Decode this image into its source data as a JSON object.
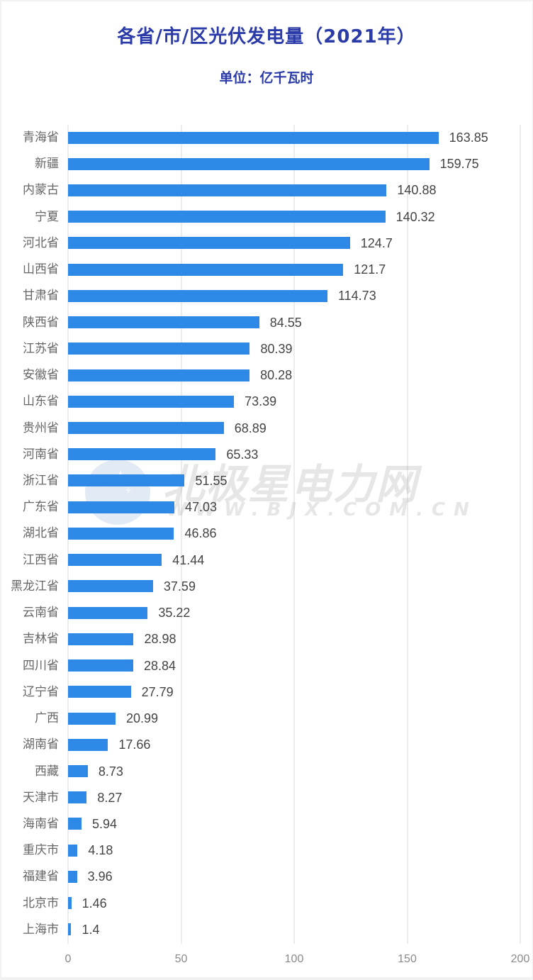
{
  "title": "各省/市/区光伏发电量（2021年）",
  "subtitle": "单位：亿千瓦时",
  "watermark": {
    "name": "北极星电力网",
    "url": "WWW.BJX.COM.CN"
  },
  "colors": {
    "bar": "#2e88e6",
    "title": "#2a3aa8",
    "grid": "#ececec"
  },
  "axis": {
    "ticks": [
      "0",
      "50",
      "100",
      "150",
      "200"
    ]
  },
  "chart_data": {
    "type": "bar",
    "orientation": "horizontal",
    "title": "各省/市/区光伏发电量（2021年）",
    "subtitle": "单位：亿千瓦时",
    "xlabel": "",
    "ylabel": "",
    "xlim": [
      0,
      200
    ],
    "xticks": [
      0,
      50,
      100,
      150,
      200
    ],
    "grid": true,
    "legend": null,
    "categories": [
      "青海省",
      "新疆",
      "内蒙古",
      "宁夏",
      "河北省",
      "山西省",
      "甘肃省",
      "陕西省",
      "江苏省",
      "安徽省",
      "山东省",
      "贵州省",
      "河南省",
      "浙江省",
      "广东省",
      "湖北省",
      "江西省",
      "黑龙江省",
      "云南省",
      "吉林省",
      "四川省",
      "辽宁省",
      "广西",
      "湖南省",
      "西藏",
      "天津市",
      "海南省",
      "重庆市",
      "福建省",
      "北京市",
      "上海市"
    ],
    "values": [
      163.85,
      159.75,
      140.88,
      140.32,
      124.7,
      121.7,
      114.73,
      84.55,
      80.39,
      80.28,
      73.39,
      68.89,
      65.33,
      51.55,
      47.03,
      46.86,
      41.44,
      37.59,
      35.22,
      28.98,
      28.84,
      27.79,
      20.99,
      17.66,
      8.73,
      8.27,
      5.94,
      4.18,
      3.96,
      1.46,
      1.4
    ],
    "value_labels": [
      "163.85",
      "159.75",
      "140.88",
      "140.32",
      "124.7",
      "121.7",
      "114.73",
      "84.55",
      "80.39",
      "80.28",
      "73.39",
      "68.89",
      "65.33",
      "51.55",
      "47.03",
      "46.86",
      "41.44",
      "37.59",
      "35.22",
      "28.98",
      "28.84",
      "27.79",
      "20.99",
      "17.66",
      "8.73",
      "8.27",
      "5.94",
      "4.18",
      "3.96",
      "1.46",
      "1.4"
    ]
  }
}
